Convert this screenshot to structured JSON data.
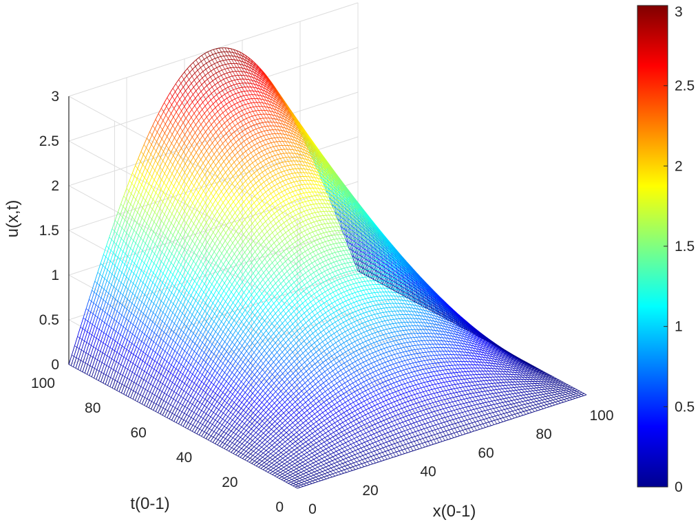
{
  "chart_data": {
    "type": "surface",
    "title": "",
    "xlabel": "x(0-1)",
    "ylabel": "t(0-1)",
    "zlabel": "u(x,t)",
    "xlim": [
      0,
      100
    ],
    "ylim": [
      0,
      100
    ],
    "zlim": [
      0,
      3
    ],
    "x_ticks": [
      "0",
      "20",
      "40",
      "60",
      "80",
      "100"
    ],
    "y_ticks": [
      "0",
      "20",
      "40",
      "60",
      "80",
      "100"
    ],
    "z_ticks": [
      "0",
      "0.5",
      "1",
      "1.5",
      "2",
      "2.5",
      "3"
    ],
    "grid": true,
    "surface": {
      "function": "u(x,t) = 3 * t * sin(pi * x)",
      "x_range": [
        0,
        1
      ],
      "t_range": [
        0,
        1
      ],
      "grid_points": 101,
      "peak_value": 3
    },
    "colorbar": {
      "colormap": "jet",
      "limits": [
        0,
        3
      ],
      "ticks": [
        "0",
        "0.5",
        "1",
        "1.5",
        "2",
        "2.5",
        "3"
      ],
      "placement": "right"
    }
  }
}
